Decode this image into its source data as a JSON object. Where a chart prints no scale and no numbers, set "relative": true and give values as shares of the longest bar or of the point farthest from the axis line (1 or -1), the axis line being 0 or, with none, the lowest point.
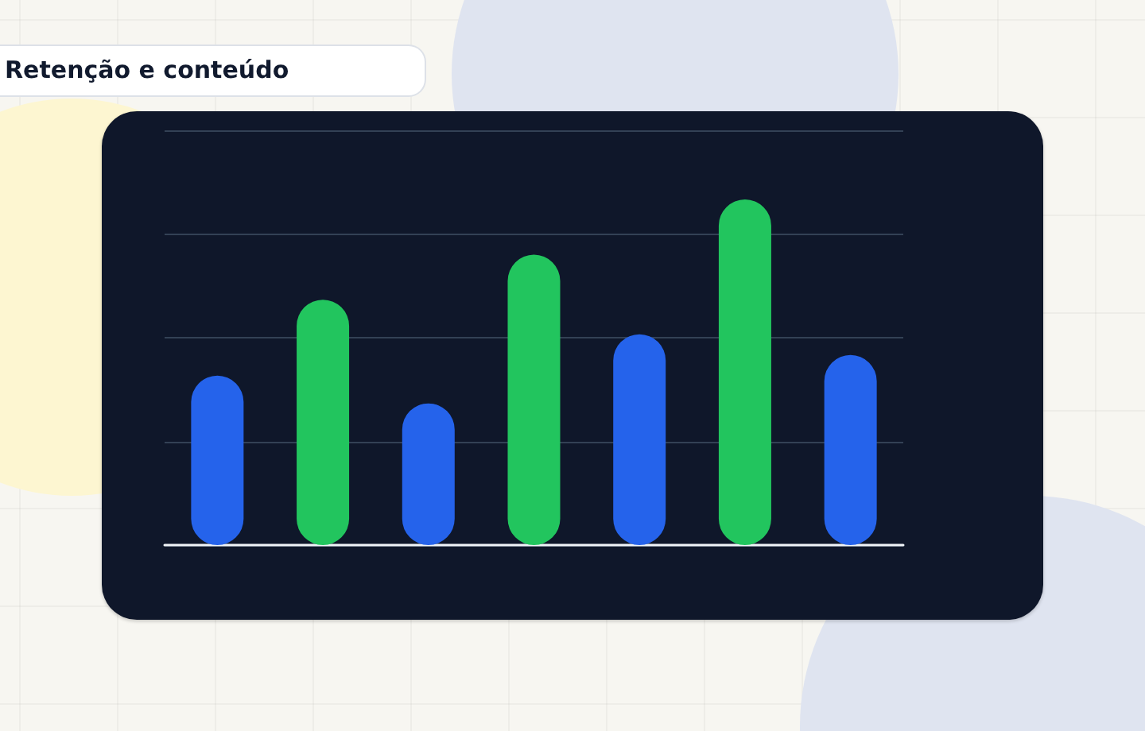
{
  "chart_data": {
    "type": "bar",
    "title": "Retenção e conteúdo",
    "relative": true,
    "grid": "y",
    "categories": [
      null,
      null,
      null,
      null,
      null,
      null,
      null
    ],
    "values": [
      0.49,
      0.71,
      0.41,
      0.84,
      0.61,
      1.0,
      0.55
    ],
    "colors": [
      "#2563eb",
      "#22c55e",
      "#2563eb",
      "#22c55e",
      "#2563eb",
      "#22c55e",
      "#2563eb"
    ]
  }
}
